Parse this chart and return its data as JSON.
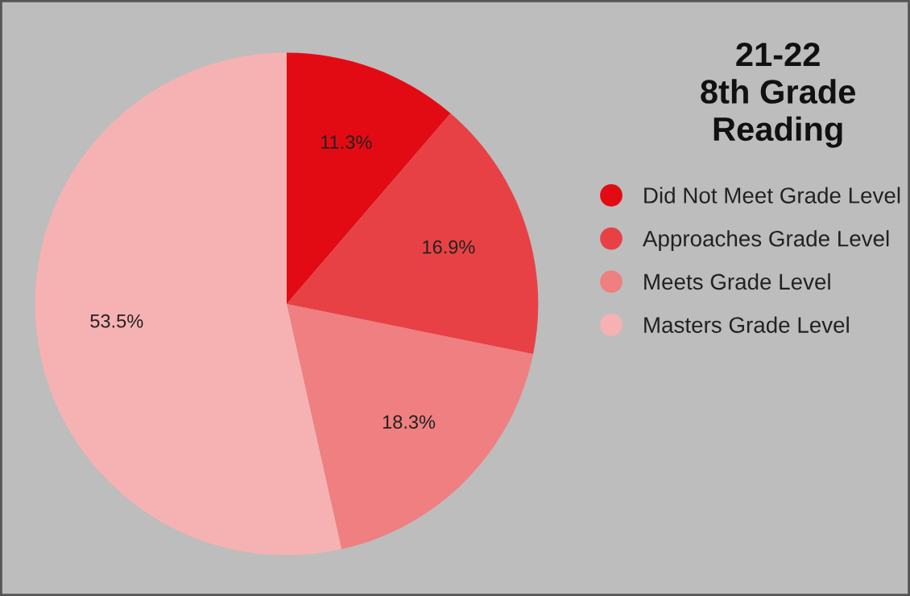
{
  "chart_data": {
    "type": "pie",
    "title": "21-22\n8th Grade\nReading",
    "categories": [
      "Did Not Meet Grade Level",
      "Approaches Grade Level",
      "Meets Grade Level",
      "Masters Grade Level"
    ],
    "values": [
      11.3,
      16.9,
      18.3,
      53.5
    ],
    "colors": [
      "#e30b13",
      "#e84145",
      "#ef7f80",
      "#f6b2b2"
    ],
    "value_labels": [
      "11.3%",
      "16.9%",
      "18.3%",
      "53.5%"
    ],
    "legend": "right"
  }
}
